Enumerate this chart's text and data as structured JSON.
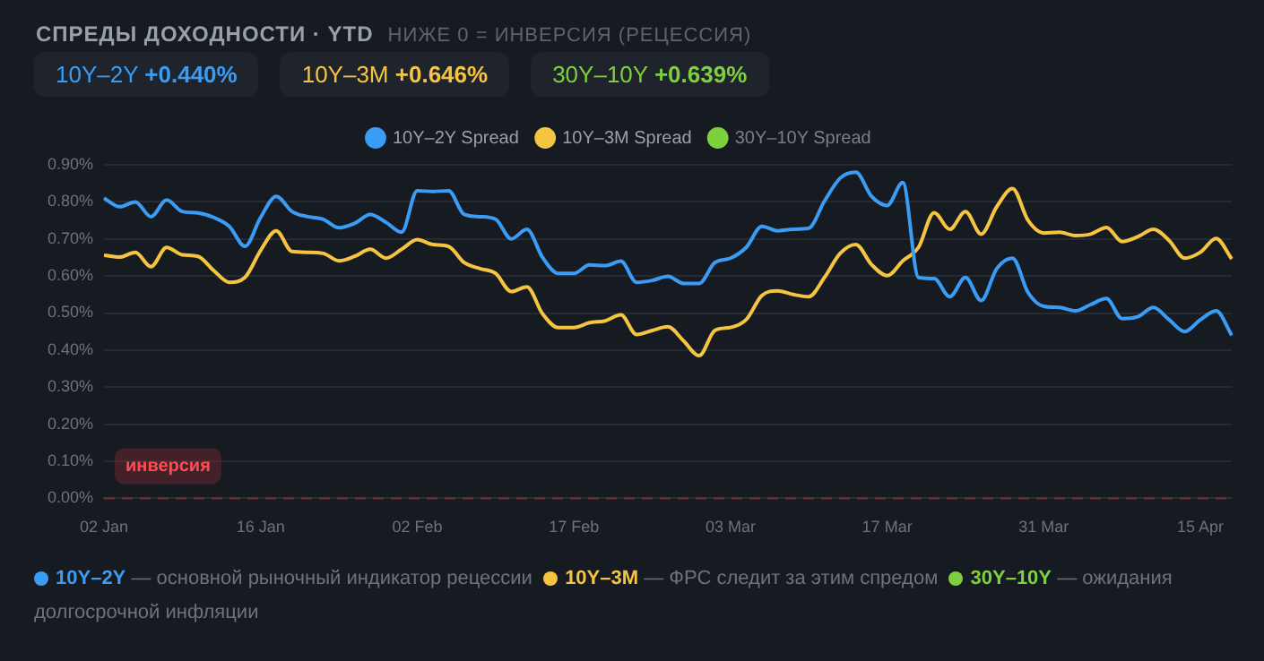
{
  "chart_data": {
    "type": "line",
    "title": "СПРЕДЫ ДОХОДНОСТИ · YTD",
    "subtitle": "НИЖЕ 0 = ИНВЕРСИЯ (РЕЦЕССИЯ)",
    "annotations": [
      "10Y–2Y +0.440%",
      "10Y–3M +0.646%",
      "30Y–10Y +0.639%",
      "10Y–2Y — основной рыночный индикатор рецессии",
      "10Y–3M — ФРС следит за этим спредом",
      "30Y–10Y — ожидания долгосрочной инфляции"
    ],
    "categories": [
      "02 Jan",
      null,
      null,
      null,
      null,
      null,
      null,
      null,
      null,
      null,
      "16 Jan",
      null,
      null,
      null,
      null,
      null,
      null,
      null,
      null,
      null,
      "02 Feb",
      null,
      null,
      null,
      null,
      null,
      null,
      null,
      null,
      null,
      "17 Feb",
      null,
      null,
      null,
      null,
      null,
      null,
      null,
      null,
      null,
      "03 Mar",
      null,
      null,
      null,
      null,
      null,
      null,
      null,
      null,
      null,
      "17 Mar",
      null,
      null,
      null,
      null,
      null,
      null,
      null,
      null,
      null,
      "31 Mar",
      null,
      null,
      null,
      null,
      null,
      null,
      null,
      null,
      null,
      "15 Apr",
      null,
      null
    ],
    "series": [
      {
        "name": "10Y–2Y Spread",
        "color": "#3b9cf5",
        "values": [
          0.81,
          0.787,
          0.8,
          0.76,
          0.805,
          0.774,
          0.77,
          0.758,
          0.734,
          0.68,
          0.758,
          0.815,
          0.774,
          0.76,
          0.753,
          0.73,
          0.742,
          0.766,
          0.745,
          0.718,
          0.83,
          0.828,
          0.83,
          0.766,
          0.76,
          0.753,
          0.7,
          0.726,
          0.65,
          0.607,
          0.607,
          0.63,
          0.628,
          0.64,
          0.583,
          0.588,
          0.599,
          0.58,
          0.58,
          0.636,
          0.648,
          0.677,
          0.734,
          0.722,
          0.726,
          0.729,
          0.802,
          0.864,
          0.88,
          0.815,
          0.79,
          0.852,
          0.596,
          0.593,
          0.544,
          0.596,
          0.534,
          0.62,
          0.648,
          0.555,
          0.518,
          0.515,
          0.506,
          0.523,
          0.539,
          0.485,
          0.49,
          0.515,
          0.482,
          0.45,
          0.482,
          0.506,
          0.44
        ]
      },
      {
        "name": "10Y–3M Spread",
        "color": "#f5c542",
        "values": [
          0.656,
          0.651,
          0.664,
          0.625,
          0.677,
          0.657,
          0.653,
          0.615,
          0.583,
          0.596,
          0.669,
          0.722,
          0.666,
          0.664,
          0.661,
          0.641,
          0.653,
          0.672,
          0.648,
          0.672,
          0.698,
          0.685,
          0.68,
          0.636,
          0.62,
          0.607,
          0.558,
          0.571,
          0.498,
          0.461,
          0.461,
          0.474,
          0.479,
          0.495,
          0.442,
          0.453,
          0.463,
          0.425,
          0.385,
          0.453,
          0.461,
          0.482,
          0.547,
          0.56,
          0.55,
          0.544,
          0.596,
          0.661,
          0.685,
          0.631,
          0.601,
          0.641,
          0.677,
          0.771,
          0.726,
          0.774,
          0.713,
          0.787,
          0.836,
          0.75,
          0.716,
          0.718,
          0.709,
          0.713,
          0.731,
          0.693,
          0.706,
          0.726,
          0.696,
          0.648,
          0.664,
          0.701,
          0.646
        ]
      },
      {
        "name": "30Y–10Y Spread",
        "color": "#7ed03f",
        "values": [
          null,
          null,
          null,
          null,
          null,
          null,
          null,
          null,
          null,
          null,
          null,
          null,
          null,
          null,
          null,
          null,
          null,
          null,
          null,
          null,
          null,
          null,
          null,
          null,
          null,
          null,
          null,
          null,
          null,
          null,
          null,
          null,
          null,
          null,
          null,
          null,
          null,
          null,
          null,
          null,
          null,
          null,
          null,
          null,
          null,
          null,
          null,
          null,
          null,
          null,
          null,
          null,
          null,
          null,
          null,
          null,
          null,
          null,
          null,
          null,
          null,
          null,
          null,
          null,
          null,
          null,
          null,
          null,
          null,
          null,
          null,
          null,
          null
        ]
      }
    ],
    "ylim": [
      0,
      0.9
    ],
    "yticks": [
      {
        "value": 0,
        "label": "0.00%"
      },
      {
        "value": 0.1,
        "label": "0.10%"
      },
      {
        "value": 0.2,
        "label": "0.20%"
      },
      {
        "value": 0.3,
        "label": "0.30%"
      },
      {
        "value": 0.4,
        "label": "0.40%"
      },
      {
        "value": 0.5,
        "label": "0.50%"
      },
      {
        "value": 0.6,
        "label": "0.60%"
      },
      {
        "value": 0.7,
        "label": "0.70%"
      },
      {
        "value": 0.8,
        "label": "0.80%"
      },
      {
        "value": 0.9,
        "label": "0.90%"
      }
    ],
    "ref_lines": [
      {
        "axis": "y",
        "value": 0,
        "label": "инверсия",
        "color": "#7a2a30",
        "line_style": "dashed"
      }
    ],
    "grid": "y",
    "legend": "top",
    "marker": "none",
    "line_style": "solid"
  }
}
